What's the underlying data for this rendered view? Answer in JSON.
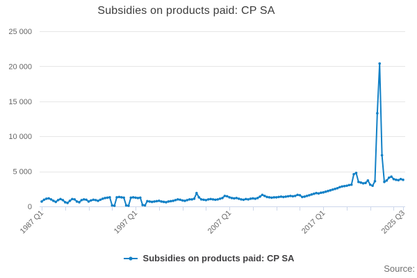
{
  "title": "Subsidies on products paid: CP SA",
  "legend": {
    "label": "Subsidies on products paid: CP SA"
  },
  "source_label": "Source:",
  "colors": {
    "line": "#1280c6",
    "grid": "#e6e6e6",
    "axis": "#ccd6eb",
    "tick_label": "#666666",
    "title_text": "#3b3b3b",
    "legend_text": "#414042",
    "source_text": "#707070",
    "background": "#ffffff"
  },
  "chart_data": {
    "type": "line",
    "title": "Subsidies on products paid: CP SA",
    "xlabel": "",
    "ylabel": "",
    "ylim": [
      0,
      25000
    ],
    "grid": "horizontal",
    "legend_position": "bottom-center",
    "y_ticks": [
      0,
      5000,
      10000,
      15000,
      20000,
      25000
    ],
    "y_tick_labels": [
      "0",
      "5 000",
      "10 000",
      "15 000",
      "20 000",
      "25 000"
    ],
    "x_axis": {
      "start_year": 1987,
      "start_quarter": 1,
      "end_year": 2025,
      "end_quarter": 3,
      "tick_every_points": 10,
      "labeled_ticks": [
        {
          "index": 0,
          "label": "1987 Q1"
        },
        {
          "index": 40,
          "label": "1997 Q1"
        },
        {
          "index": 80,
          "label": "2007 Q1"
        },
        {
          "index": 120,
          "label": "2017 Q1"
        },
        {
          "index": 154,
          "label": "2025 Q3"
        }
      ]
    },
    "series": [
      {
        "name": "Subsidies on products paid: CP SA",
        "color": "#1280c6",
        "values": [
          700,
          950,
          1100,
          1150,
          1000,
          800,
          650,
          900,
          1050,
          900,
          600,
          500,
          800,
          1050,
          1000,
          700,
          600,
          900,
          1000,
          950,
          700,
          850,
          950,
          900,
          800,
          950,
          1100,
          1200,
          1250,
          1300,
          150,
          100,
          1300,
          1350,
          1300,
          1250,
          150,
          100,
          1250,
          1300,
          1250,
          1200,
          1250,
          200,
          150,
          750,
          700,
          650,
          700,
          750,
          800,
          700,
          650,
          600,
          700,
          750,
          800,
          900,
          1000,
          950,
          850,
          800,
          900,
          1000,
          1000,
          1100,
          1900,
          1300,
          1000,
          950,
          900,
          1000,
          1050,
          1000,
          950,
          1000,
          1100,
          1200,
          1500,
          1450,
          1300,
          1200,
          1150,
          1200,
          1100,
          1000,
          950,
          1050,
          1000,
          1100,
          1150,
          1100,
          1200,
          1400,
          1650,
          1500,
          1350,
          1300,
          1250,
          1300,
          1300,
          1350,
          1400,
          1350,
          1400,
          1450,
          1500,
          1450,
          1500,
          1650,
          1600,
          1350,
          1400,
          1500,
          1600,
          1700,
          1800,
          1900,
          1850,
          1950,
          2000,
          2100,
          2200,
          2300,
          2400,
          2500,
          2600,
          2750,
          2850,
          2900,
          2950,
          3050,
          3100,
          4600,
          4780,
          3500,
          3400,
          3300,
          3350,
          3700,
          3100,
          2950,
          3600,
          13300,
          20400,
          7300,
          3500,
          3700,
          4100,
          4250,
          3900,
          3800,
          3750,
          3900,
          3800
        ]
      }
    ]
  }
}
